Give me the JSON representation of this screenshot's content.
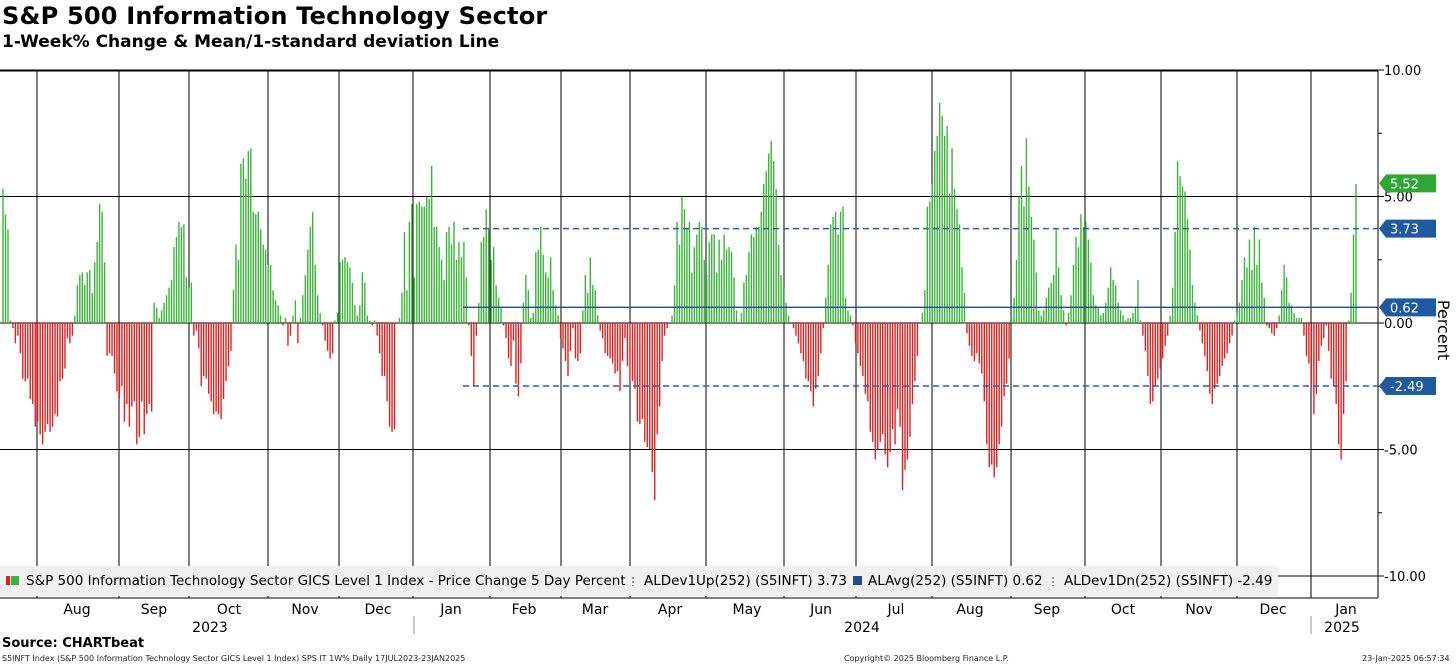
{
  "title": "S&P 500 Information Technology Sector",
  "subtitle": "1-Week% Change & Mean/1-standard deviation Line",
  "source": "Source: CHARTbeat",
  "footer": {
    "left": "S5INFT Index (S&P 500 Information Technology Sector GICS Level 1 Index) SPS IT 1W%  Daily 17JUL2023-23JAN2025",
    "center": "Copyright© 2025 Bloomberg Finance L.P.",
    "right": "23-Jan-2025 06:57:34"
  },
  "colors": {
    "positive": "#3cb43c",
    "negative": "#e02020",
    "band": "#2e5fa0",
    "mean": "#1f4e8c",
    "tag_green": "#2ea832",
    "tag_blue": "#1f5aa0"
  },
  "chart_data": {
    "type": "bar",
    "ylabel": "Percent",
    "ylim": [
      -10,
      10
    ],
    "yticks": [
      "10.00",
      "5.00",
      "0.00",
      "-5.00",
      "-10.00"
    ],
    "ytick_values": [
      10,
      5,
      0,
      -5,
      -10
    ],
    "months": [
      "Aug",
      "Sep",
      "Oct",
      "Nov",
      "Dec",
      "Jan",
      "Feb",
      "Mar",
      "Apr",
      "May",
      "Jun",
      "Jul",
      "Aug",
      "Sep",
      "Oct",
      "Nov",
      "Dec",
      "Jan"
    ],
    "years": [
      "2023",
      "2024",
      "2025"
    ],
    "lines": {
      "dev_up": 3.73,
      "mean": 0.62,
      "dev_down": -2.49,
      "last": 5.52
    },
    "tags": {
      "last": "5.52",
      "dev_up": "3.73",
      "mean": "0.62",
      "dev_down": "-2.49"
    },
    "legend": [
      {
        "label": "S&P 500 Information Technology Sector GICS Level 1 Index - Price Change 5 Day Percent",
        "swatch": "bars"
      },
      {
        "label": "ALDev1Up(252) (S5INFT) 3.73",
        "swatch": "dash"
      },
      {
        "label": "ALAvg(252) (S5INFT) 0.62",
        "swatch": "solid"
      },
      {
        "label": "ALDev1Dn(252) (S5INFT) -2.49",
        "swatch": "dash"
      }
    ],
    "values": [
      5.3,
      4.3,
      3.7,
      0.1,
      -0.2,
      -0.8,
      -0.5,
      -1.2,
      -2.2,
      -2.3,
      -2.2,
      -3.0,
      -3.2,
      -4.1,
      -3.9,
      -4.4,
      -4.8,
      -4.3,
      -4.0,
      -4.3,
      -4.1,
      -3.6,
      -3.7,
      -2.3,
      -2.2,
      -1.8,
      -0.6,
      -0.8,
      -0.5,
      0.3,
      1.5,
      1.9,
      2.0,
      1.5,
      2.0,
      2.1,
      1.2,
      2.4,
      3.2,
      4.7,
      4.4,
      2.4,
      -1.3,
      -1.2,
      -1.3,
      -2.0,
      -2.7,
      -3.0,
      -2.5,
      -3.9,
      -3.2,
      -4.1,
      -3.3,
      -3.1,
      -4.8,
      -4.5,
      -3.1,
      -4.4,
      -3.6,
      -3.2,
      -3.5,
      0.8,
      0.6,
      0.2,
      0.5,
      0.8,
      1.1,
      1.4,
      1.7,
      3.0,
      3.4,
      4.0,
      3.8,
      3.9,
      1.8,
      1.4,
      1.6,
      -0.5,
      -0.3,
      -1.0,
      -2.5,
      -2.1,
      -2.2,
      -2.8,
      -3.1,
      -3.6,
      -3.5,
      -3.6,
      -3.8,
      -3.0,
      -2.3,
      -1.7,
      -1.1,
      1.3,
      3.1,
      2.5,
      6.3,
      6.5,
      5.7,
      6.8,
      6.9,
      4.4,
      4.3,
      4.4,
      3.7,
      3.1,
      2.9,
      2.3,
      2.3,
      1.3,
      0.9,
      0.7,
      0.3,
      -0.1,
      0.2,
      -0.9,
      -0.5,
      0.3,
      0.9,
      -0.8,
      0.2,
      1.1,
      1.9,
      2.9,
      3.8,
      4.4,
      2.3,
      1.1,
      0.4,
      -0.1,
      -0.7,
      -1.1,
      -1.4,
      -1.2,
      0.1,
      0.4,
      2.4,
      2.5,
      2.6,
      2.4,
      2.2,
      1.6,
      0.7,
      0.3,
      0.7,
      2.0,
      1.6,
      0.3,
      0.1,
      -0.1,
      0.1,
      -0.5,
      -1.2,
      -2.1,
      -2.1,
      -3.1,
      -4.1,
      -4.3,
      -4.2,
      0.0,
      0.2,
      1.2,
      3.6,
      1.3,
      4.0,
      4.7,
      1.8,
      4.7,
      4.8,
      4.6,
      4.6,
      5.0,
      4.9,
      6.2,
      3.8,
      3.8,
      3.0,
      2.5,
      1.7,
      3.6,
      3.8,
      3.1,
      4.0,
      2.5,
      3.2,
      2.6,
      3.2,
      1.8,
      -0.1,
      -1.3,
      -2.5,
      -0.5,
      0.8,
      3.2,
      3.4,
      4.5,
      3.7,
      2.5,
      3.0,
      1.5,
      1.0,
      0.6,
      -0.1,
      -0.6,
      -1.4,
      -1.7,
      -0.7,
      -2.4,
      -2.9,
      -1.6,
      0.8,
      1.9,
      1.3,
      0.2,
      0.4,
      2.8,
      2.9,
      3.8,
      2.7,
      2.0,
      1.8,
      2.6,
      1.3,
      0.7,
      0.3,
      -0.6,
      -1.0,
      -1.5,
      -2.1,
      -1.1,
      -0.2,
      -1.4,
      -1.5,
      -1.2,
      0.5,
      1.9,
      1.2,
      2.6,
      1.5,
      1.3,
      0.3,
      -0.3,
      -0.6,
      -1.2,
      -1.3,
      -1.4,
      -1.6,
      -2.0,
      -1.9,
      -2.7,
      -1.5,
      -0.6,
      -1.7,
      -2.3,
      -2.3,
      -2.6,
      -3.9,
      -4.0,
      -3.8,
      -4.7,
      -4.9,
      -5.0,
      -5.9,
      -7.0,
      -4.4,
      -3.3,
      -1.5,
      -0.5,
      -0.2,
      0.0,
      0.3,
      1.5,
      4.0,
      3.1,
      5.0,
      4.5,
      3.7,
      4.0,
      2.0,
      3.0,
      3.5,
      4.0,
      3.8,
      2.5,
      1.9,
      3.2,
      3.5,
      3.5,
      2.0,
      3.3,
      2.5,
      3.5,
      2.9,
      3.0,
      2.8,
      1.8,
      0.5,
      0.0,
      0.4,
      1.6,
      1.9,
      2.8,
      3.5,
      3.4,
      3.8,
      3.8,
      4.4,
      5.5,
      6.0,
      6.7,
      7.2,
      6.4,
      5.3,
      3.1,
      1.9,
      1.4,
      0.8,
      0.3,
      0.0,
      -0.2,
      -0.5,
      -0.8,
      -1.2,
      -1.5,
      -2.2,
      -2.3,
      -2.7,
      -3.3,
      -2.6,
      -2.1,
      -1.2,
      -0.2,
      1.0,
      2.3,
      3.9,
      4.2,
      4.4,
      3.5,
      4.4,
      4.6,
      1.0,
      0.5,
      0.3,
      -0.1,
      -0.8,
      -1.2,
      -1.7,
      -2.1,
      -2.8,
      -3.1,
      -4.3,
      -4.7,
      -5.4,
      -5.0,
      -4.7,
      -4.4,
      -5.2,
      -5.7,
      -5.1,
      -4.2,
      -4.8,
      -3.4,
      -4.1,
      -6.6,
      -5.8,
      -5.4,
      -4.5,
      -3.2,
      -2.3,
      -1.3,
      0.0,
      0.4,
      1.3,
      4.6,
      4.8,
      5.5,
      6.8,
      7.4,
      8.7,
      8.2,
      7.4,
      7.8,
      5.1,
      6.9,
      5.3,
      4.5,
      3.9,
      2.2,
      1.2,
      -0.4,
      -0.9,
      -1.3,
      -1.5,
      -1.2,
      -1.6,
      -2.0,
      -3.1,
      -4.8,
      -5.7,
      -5.6,
      -6.1,
      -5.7,
      -4.8,
      -4.1,
      -2.9,
      -2.4,
      -1.4,
      0.3,
      1.0,
      2.5,
      5.0,
      6.2,
      4.6,
      7.3,
      5.4,
      4.2,
      3.3,
      2.0,
      0.5,
      0.3,
      0.5,
      1.0,
      1.4,
      1.6,
      1.9,
      3.7,
      2.2,
      1.1,
      0.5,
      -0.1,
      0.4,
      1.1,
      2.3,
      3.4,
      3.0,
      4.3,
      3.8,
      4.0,
      3.3,
      2.4,
      1.1,
      0.7,
      0.6,
      0.3,
      0.4,
      0.8,
      1.4,
      2.2,
      1.7,
      1.5,
      0.8,
      0.5,
      0.3,
      0.1,
      0.2,
      0.2,
      0.4,
      0.6,
      1.7,
      0.1,
      -0.5,
      -1.1,
      -2.1,
      -3.2,
      -3.1,
      -2.5,
      -2.2,
      -1.8,
      -1.4,
      -0.9,
      -0.5,
      0.3,
      1.4,
      3.6,
      6.4,
      5.8,
      5.4,
      5.2,
      4.1,
      2.9,
      1.5,
      0.8,
      0.3,
      -0.3,
      -0.8,
      -1.3,
      -1.9,
      -2.8,
      -3.2,
      -2.6,
      -2.4,
      -2.1,
      -1.7,
      -1.4,
      -1.2,
      -0.8,
      -0.5,
      0.1,
      0.4,
      0.8,
      1.7,
      2.6,
      2.2,
      3.3,
      2.1,
      3.8,
      2.3,
      3.3,
      1.6,
      1.0,
      -0.1,
      -0.2,
      -0.4,
      -0.5,
      -0.2,
      0.3,
      1.3,
      2.3,
      1.8,
      0.8,
      0.7,
      0.4,
      0.2,
      0.2,
      0.2,
      -0.5,
      -1.3,
      -1.6,
      -2.5,
      -3.6,
      -2.8,
      -1.5,
      -0.9,
      -0.6,
      -0.1,
      -1.1,
      -2.2,
      -2.5,
      -3.2,
      -4.8,
      -5.4,
      -3.6,
      -2.3,
      0.1,
      1.2,
      3.5,
      5.5
    ]
  }
}
